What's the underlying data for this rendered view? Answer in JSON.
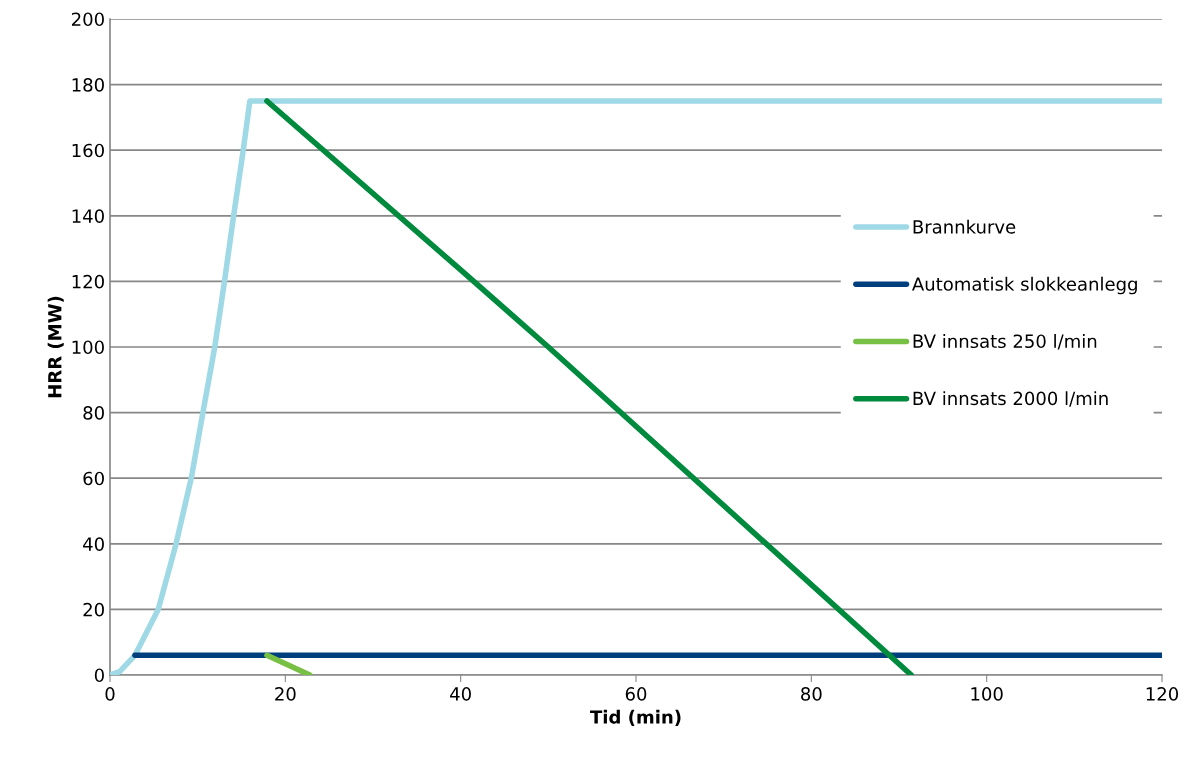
{
  "chart_data": {
    "type": "line",
    "xlabel": "Tid (min)",
    "ylabel": "HRR (MW)",
    "xlim": [
      0,
      120
    ],
    "xticks": [
      0,
      20,
      40,
      60,
      80,
      100,
      120
    ],
    "ylim": [
      0,
      200
    ],
    "yticks": [
      0,
      20,
      40,
      60,
      80,
      100,
      120,
      140,
      160,
      180,
      200
    ],
    "grid": "y",
    "legend": "right",
    "line_style": "solid",
    "marker": "none",
    "series": [
      {
        "name": "Brannkurve",
        "color": "#9fd9e6",
        "x": [
          0,
          1.1,
          2.85,
          5.5,
          7.5,
          9.3,
          10.6,
          11.95,
          13.06,
          14.1,
          15.2,
          15.95,
          120
        ],
        "values": [
          0,
          1,
          6,
          20,
          39.6,
          60.4,
          80,
          100,
          120,
          140,
          160,
          175,
          175
        ]
      },
      {
        "name": "Automatisk slokkeanlegg",
        "color": "#003f7d",
        "x": [
          2.85,
          120
        ],
        "values": [
          6,
          6
        ]
      },
      {
        "name": "BV innsats 250 l/min",
        "color": "#77c043",
        "x": [
          17.9,
          22.8
        ],
        "values": [
          6,
          0
        ]
      },
      {
        "name": "BV innsats 2000 l/min",
        "color": "#008a3e",
        "x": [
          17.9,
          40,
          50,
          91.4
        ],
        "values": [
          175,
          123.5,
          100,
          0
        ]
      }
    ]
  }
}
